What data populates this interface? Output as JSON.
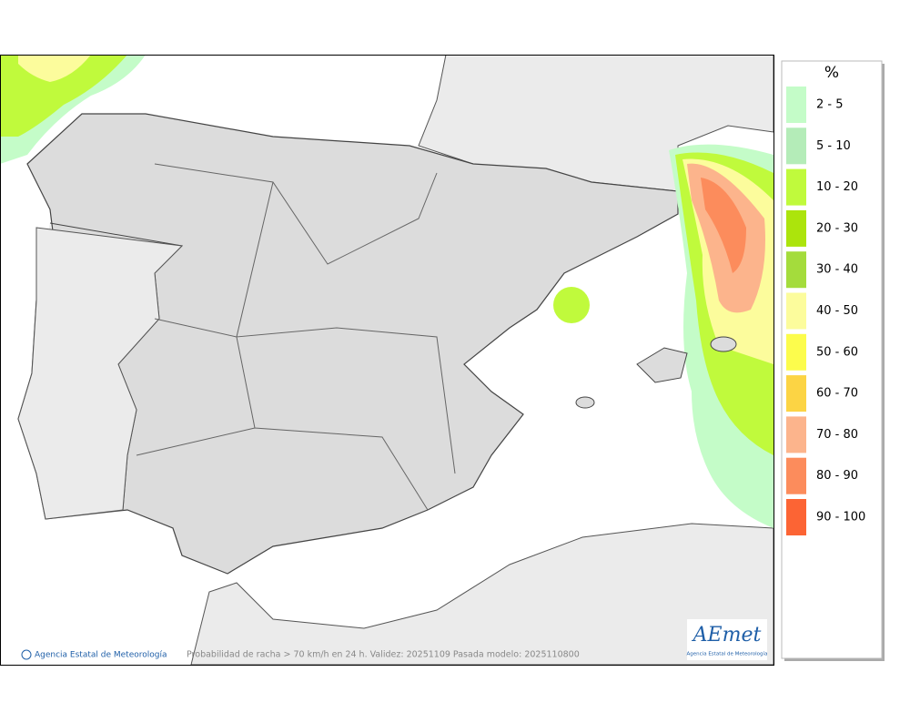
{
  "legend": {
    "title": "%",
    "items": [
      {
        "label": "2 - 5",
        "color": "#c4fcc8"
      },
      {
        "label": "5 - 10",
        "color": "#b4ecb8"
      },
      {
        "label": "10 - 20",
        "color": "#c0fa3c"
      },
      {
        "label": "20 - 30",
        "color": "#ace40c"
      },
      {
        "label": "30 - 40",
        "color": "#a4dc3c"
      },
      {
        "label": "40 - 50",
        "color": "#fcfc9c"
      },
      {
        "label": "50 - 60",
        "color": "#fcfc4c"
      },
      {
        "label": "60 - 70",
        "color": "#fcd444"
      },
      {
        "label": "70 - 80",
        "color": "#fcb48c"
      },
      {
        "label": "80 - 90",
        "color": "#fc8c5c"
      },
      {
        "label": "90 - 100",
        "color": "#fc6434"
      }
    ]
  },
  "footer": {
    "credit": "Agencia Estatal de Meteorología",
    "caption": "Probabilidad de racha > 70 km/h en 24 h. Validez: 20251109 Pasada modelo: 2025110800"
  },
  "logo": {
    "text": "AEmet",
    "subtitle": "Agencia Estatal de Meteorología"
  }
}
